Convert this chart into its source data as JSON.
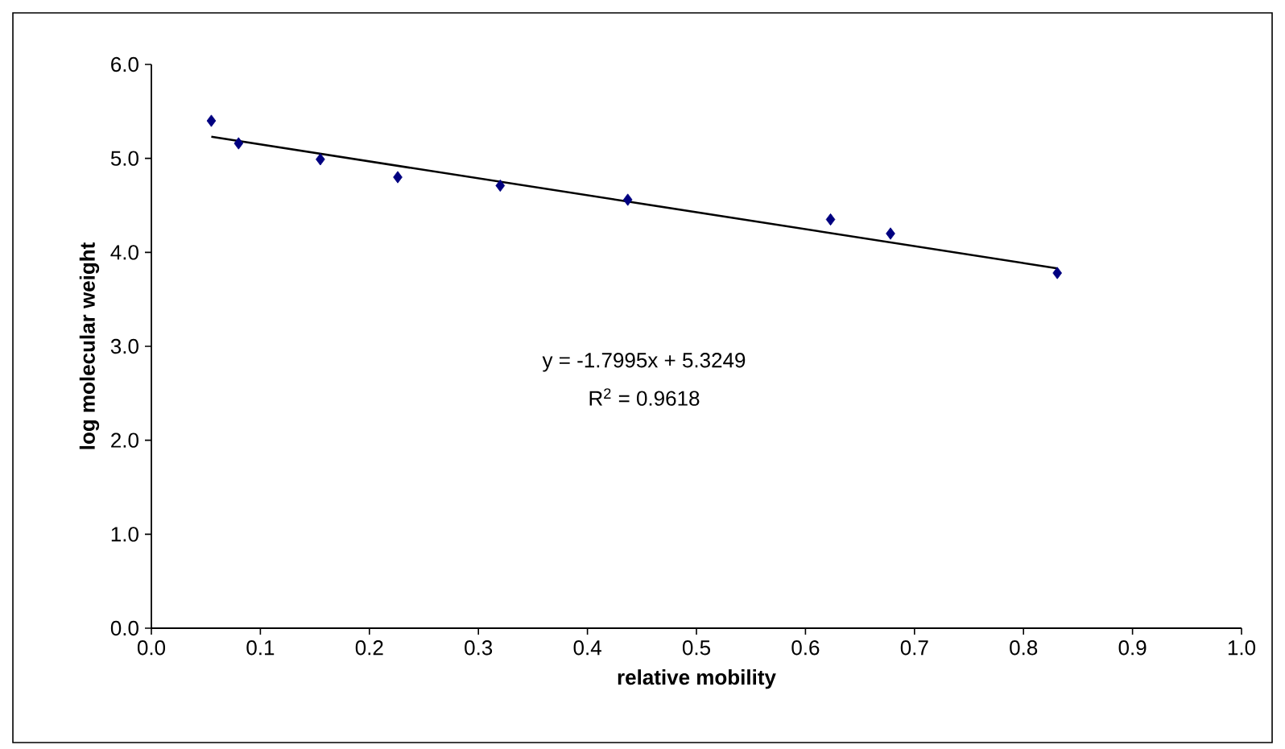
{
  "chart_data": {
    "type": "scatter",
    "xlabel": "relative mobility",
    "ylabel": "log molecular weight",
    "xlim": [
      0,
      1
    ],
    "ylim": [
      0,
      6
    ],
    "xticks": [
      {
        "value": 0,
        "label": "0.0"
      },
      {
        "value": 0.1,
        "label": "0.1"
      },
      {
        "value": 0.2,
        "label": "0.2"
      },
      {
        "value": 0.3,
        "label": "0.3"
      },
      {
        "value": 0.4,
        "label": "0.4"
      },
      {
        "value": 0.5,
        "label": "0.5"
      },
      {
        "value": 0.6,
        "label": "0.6"
      },
      {
        "value": 0.7,
        "label": "0.7"
      },
      {
        "value": 0.8,
        "label": "0.8"
      },
      {
        "value": 0.9,
        "label": "0.9"
      },
      {
        "value": 1,
        "label": "1.0"
      }
    ],
    "yticks": [
      {
        "value": 0,
        "label": "0.0"
      },
      {
        "value": 1,
        "label": "1.0"
      },
      {
        "value": 2,
        "label": "2.0"
      },
      {
        "value": 3,
        "label": "3.0"
      },
      {
        "value": 4,
        "label": "4.0"
      },
      {
        "value": 5,
        "label": "5.0"
      },
      {
        "value": 6,
        "label": "6.0"
      }
    ],
    "grid": false,
    "series": [
      {
        "marker": "diamond",
        "color": "#000080",
        "x": [
          0.055,
          0.08,
          0.155,
          0.226,
          0.32,
          0.437,
          0.623,
          0.678,
          0.831
        ],
        "values": [
          5.4,
          5.16,
          4.99,
          4.8,
          4.71,
          4.56,
          4.35,
          4.2,
          3.78
        ]
      },
      {
        "type": "line",
        "marker": "none",
        "color": "#000000",
        "x": [
          0.055,
          0.831
        ],
        "values": [
          5.23,
          3.83
        ]
      }
    ],
    "annotations": [
      "y = -1.7995x + 5.3249",
      "R$^{2}$ = 0.9618"
    ]
  }
}
